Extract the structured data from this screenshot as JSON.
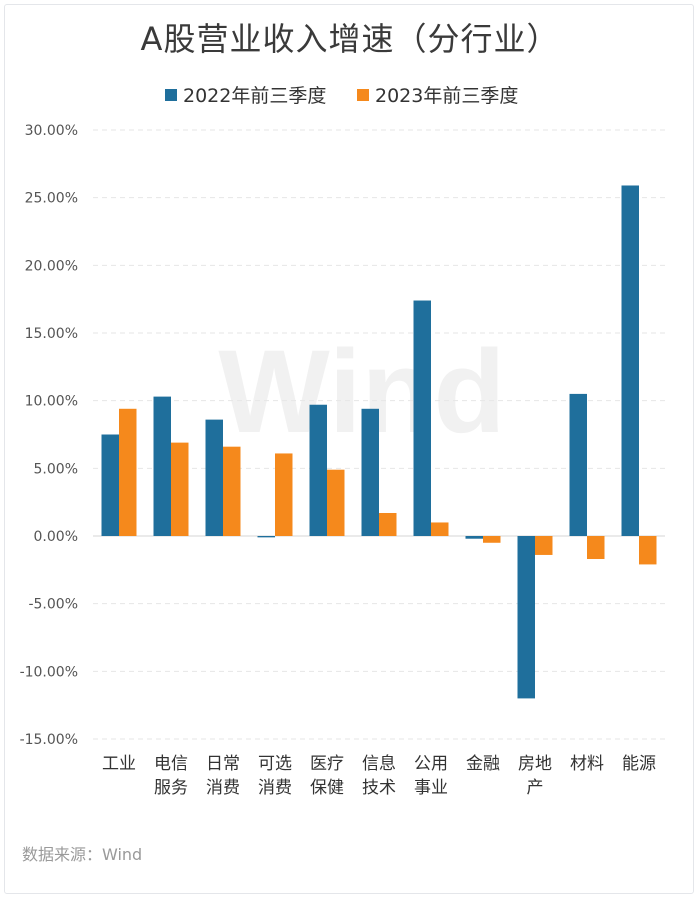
{
  "title": "A股营业收入增速（分行业）",
  "source": "数据来源：Wind",
  "watermark": "Wind",
  "chart_data": {
    "type": "bar",
    "title": "A股营业收入增速（分行业）",
    "xlabel": "",
    "ylabel": "",
    "ylim": [
      -15,
      30
    ],
    "yticks": [
      "30.00%",
      "25.00%",
      "20.00%",
      "15.00%",
      "10.00%",
      "5.00%",
      "0.00%",
      "-5.00%",
      "-10.00%",
      "-15.00%"
    ],
    "ytick_values": [
      30,
      25,
      20,
      15,
      10,
      5,
      0,
      -5,
      -10,
      -15
    ],
    "grid": true,
    "legend_position": "top",
    "categories": [
      [
        "工业"
      ],
      [
        "电信",
        "服务"
      ],
      [
        "日常",
        "消费"
      ],
      [
        "可选",
        "消费"
      ],
      [
        "医疗",
        "保健"
      ],
      [
        "信息",
        "技术"
      ],
      [
        "公用",
        "事业"
      ],
      [
        "金融"
      ],
      [
        "房地",
        "产"
      ],
      [
        "材料"
      ],
      [
        "能源"
      ]
    ],
    "series": [
      {
        "name": "2022年前三季度",
        "color": "#1f6f9c",
        "values": [
          7.5,
          10.3,
          8.6,
          -0.1,
          9.7,
          9.4,
          17.4,
          -0.2,
          -12.0,
          10.5,
          25.9
        ]
      },
      {
        "name": "2023年前三季度",
        "color": "#f5891c",
        "values": [
          9.4,
          6.9,
          6.6,
          6.1,
          4.9,
          1.7,
          1.0,
          -0.5,
          -1.4,
          -1.7,
          -2.1
        ]
      }
    ]
  }
}
